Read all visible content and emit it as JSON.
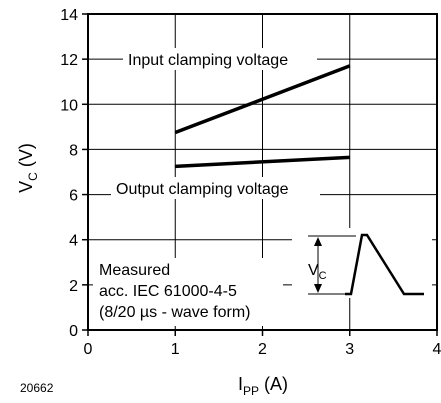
{
  "chart_data": {
    "type": "line",
    "xlabel": {
      "main": "I",
      "sub": "PP",
      "unit": " (A)"
    },
    "ylabel": {
      "main": "V",
      "sub": "C",
      "unit": " (V)"
    },
    "xlim": [
      0,
      4
    ],
    "ylim": [
      0,
      14
    ],
    "x_ticks": [
      0,
      1,
      2,
      3,
      4
    ],
    "y_ticks": [
      0,
      2,
      4,
      6,
      8,
      10,
      12,
      14
    ],
    "grid": true,
    "series": [
      {
        "name": "Input clamping voltage",
        "x": [
          1,
          3
        ],
        "y": [
          8.75,
          11.7
        ]
      },
      {
        "name": "Output clamping voltage",
        "x": [
          1,
          3
        ],
        "y": [
          7.25,
          7.65
        ]
      }
    ],
    "annotations": {
      "figure_id": "20662",
      "measurement_note": [
        "Measured",
        "acc. IEC 61000-4-5",
        "(8/20 µs - wave form)"
      ],
      "inset_label": {
        "main": "V",
        "sub": "C"
      }
    }
  }
}
